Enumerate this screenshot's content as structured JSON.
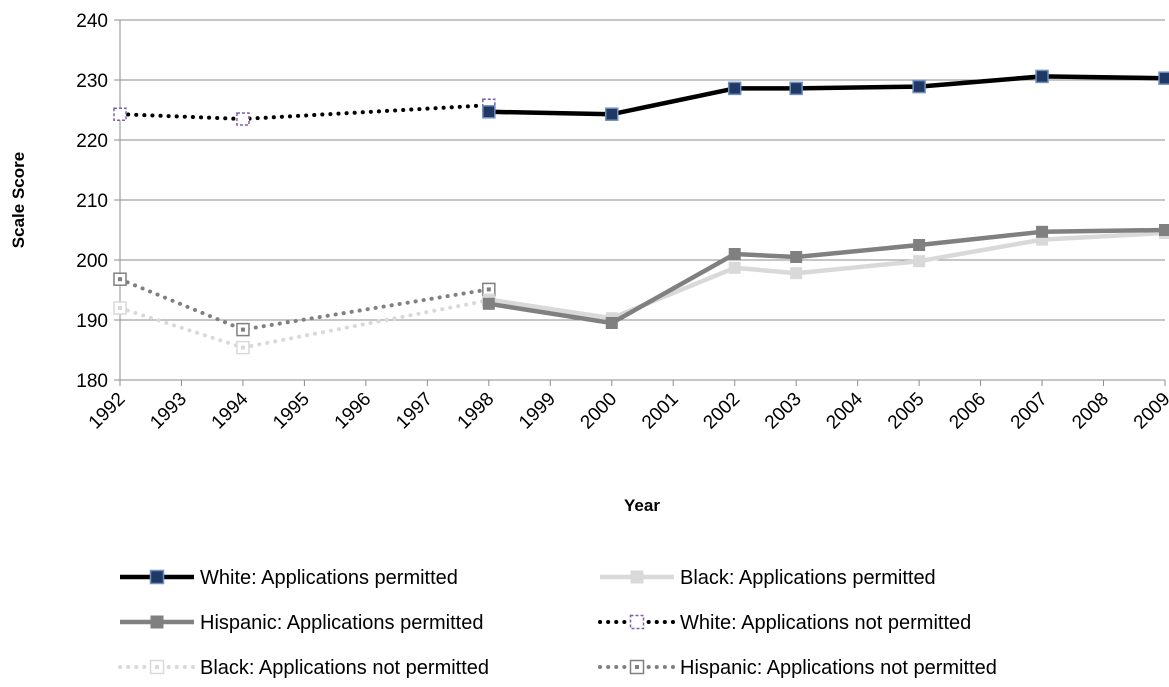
{
  "chart_data": {
    "type": "line",
    "xlabel": "Year",
    "ylabel": "Scale Score",
    "ylim": [
      180,
      240
    ],
    "y_ticks": [
      180,
      190,
      200,
      210,
      220,
      230,
      240
    ],
    "x_tick_labels": [
      "1992",
      "1993",
      "1994",
      "1995",
      "1996",
      "1997",
      "1998",
      "1999",
      "2000",
      "2001",
      "2002",
      "2003",
      "2004",
      "2005",
      "2006",
      "2007",
      "2008",
      "2009"
    ],
    "grid": "horizontal",
    "legend_position": "bottom",
    "series": [
      {
        "name": "White: Applications permitted",
        "style": "solid-thick",
        "color": "#000000",
        "marker_fill": "#1f3864",
        "x": [
          1998,
          2000,
          2002,
          2003,
          2005,
          2007,
          2009
        ],
        "y": [
          224.7,
          224.3,
          228.6,
          228.6,
          228.9,
          230.6,
          230.3
        ]
      },
      {
        "name": "Black: Applications permitted",
        "style": "solid",
        "color": "#d9d9d9",
        "marker_fill": "#d9d9d9",
        "x": [
          1998,
          2000,
          2002,
          2003,
          2005,
          2007,
          2009
        ],
        "y": [
          193.4,
          190.3,
          198.7,
          197.8,
          199.8,
          203.4,
          204.5
        ]
      },
      {
        "name": "Hispanic: Applications permitted",
        "style": "solid",
        "color": "#808080",
        "marker_fill": "#808080",
        "x": [
          1998,
          2000,
          2002,
          2003,
          2005,
          2007,
          2009
        ],
        "y": [
          192.7,
          189.5,
          201.0,
          200.5,
          202.5,
          204.7,
          205.0
        ]
      },
      {
        "name": "White: Applications not permitted",
        "style": "dotted",
        "color": "#000000",
        "marker_fill": "#ffffff",
        "marker_stroke": "#7f60a8",
        "x": [
          1992,
          1994,
          1998
        ],
        "y": [
          224.3,
          223.5,
          225.8
        ]
      },
      {
        "name": "Black: Applications not permitted",
        "style": "dotted",
        "color": "#d9d9d9",
        "marker_fill": "#ffffff",
        "marker_stroke": "#d9d9d9",
        "x": [
          1992,
          1994,
          1998
        ],
        "y": [
          192.0,
          185.4,
          193.3
        ]
      },
      {
        "name": "Hispanic: Applications not permitted",
        "style": "dotted",
        "color": "#808080",
        "marker_fill": "#ffffff",
        "marker_stroke": "#808080",
        "x": [
          1992,
          1994,
          1998
        ],
        "y": [
          196.8,
          188.4,
          195.1
        ]
      }
    ]
  }
}
